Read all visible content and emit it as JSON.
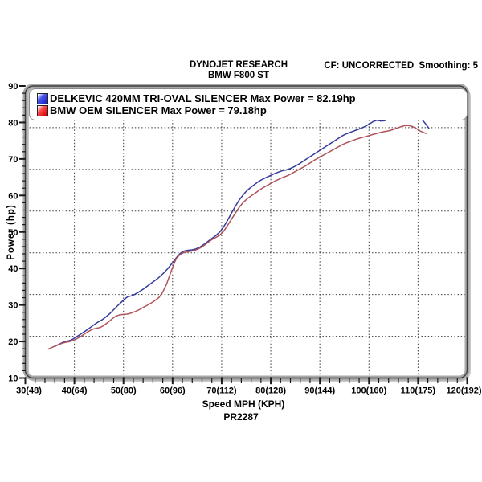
{
  "header": {
    "company": "DYNOJET RESEARCH",
    "vehicle": "BMW F800 ST",
    "correction": "CF: UNCORRECTED  Smoothing: 5"
  },
  "footer": {
    "run_id": "PR2287"
  },
  "colors": {
    "grid": "#3a3a3a",
    "frame_tube": "#a9a9a9",
    "frame_shadow": "#c9c9c9",
    "frame_line": "#3f3f3f",
    "tick": "#1a1a1a",
    "text": "#000000",
    "plot_bg": "#ffffff"
  },
  "chart_data": {
    "type": "line",
    "title": "",
    "xlabel": "Speed MPH (KPH)",
    "ylabel": "Power (hp)",
    "xlim": [
      30,
      120
    ],
    "ylim": [
      10,
      90
    ],
    "grid": "dashed",
    "legend_position": "top-inside",
    "x_ticks": [
      {
        "value": 30,
        "label": "30(48)"
      },
      {
        "value": 40,
        "label": "40(64)"
      },
      {
        "value": 50,
        "label": "50(80)"
      },
      {
        "value": 60,
        "label": "60(96)"
      },
      {
        "value": 70,
        "label": "70(112)"
      },
      {
        "value": 80,
        "label": "80(128)"
      },
      {
        "value": 90,
        "label": "90(144)"
      },
      {
        "value": 100,
        "label": "100(160)"
      },
      {
        "value": 110,
        "label": "110(175)"
      },
      {
        "value": 120,
        "label": "120(192)"
      }
    ],
    "y_ticks": [
      90,
      80,
      70,
      60,
      50,
      40,
      30,
      20,
      10
    ],
    "minor_tick_step": 2,
    "v_gridlines_mph": [
      40,
      50,
      60,
      70,
      80,
      90,
      100,
      110
    ],
    "h_gridlines_hp": [
      78.57,
      67.14,
      55.71,
      44.29,
      32.86,
      21.43
    ],
    "series": [
      {
        "name": "DELKEVIC 420MM TRI-OVAL SILENCER",
        "max_power_hp": 82.19,
        "legend": "DELKEVIC 420MM TRI-OVAL SILENCER Max Power = 82.19hp",
        "color": "#343a9b",
        "swatch": {
          "light": "#ffffff",
          "mid": "#4a55f0",
          "dark": "#1620c0"
        },
        "points": [
          [
            36.0,
            18.6
          ],
          [
            36.8,
            19.2
          ],
          [
            37.6,
            19.7
          ],
          [
            38.5,
            20.1
          ],
          [
            39.2,
            20.3
          ],
          [
            40.0,
            20.9
          ],
          [
            40.8,
            21.6
          ],
          [
            41.6,
            22.3
          ],
          [
            42.4,
            23.0
          ],
          [
            43.2,
            23.8
          ],
          [
            44.0,
            24.6
          ],
          [
            44.8,
            25.3
          ],
          [
            45.6,
            25.9
          ],
          [
            46.4,
            26.7
          ],
          [
            47.2,
            27.6
          ],
          [
            48.0,
            28.7
          ],
          [
            48.8,
            29.8
          ],
          [
            49.5,
            30.7
          ],
          [
            50.2,
            31.6
          ],
          [
            50.9,
            32.3
          ],
          [
            51.6,
            32.5
          ],
          [
            52.3,
            32.9
          ],
          [
            53.2,
            33.6
          ],
          [
            54.1,
            34.4
          ],
          [
            55.0,
            35.3
          ],
          [
            56.0,
            36.3
          ],
          [
            57.0,
            37.3
          ],
          [
            58.0,
            38.5
          ],
          [
            59.0,
            39.9
          ],
          [
            60.0,
            41.6
          ],
          [
            60.8,
            43.0
          ],
          [
            61.6,
            44.2
          ],
          [
            62.4,
            44.8
          ],
          [
            63.2,
            45.0
          ],
          [
            64.0,
            45.1
          ],
          [
            64.8,
            45.4
          ],
          [
            65.6,
            45.9
          ],
          [
            66.4,
            46.6
          ],
          [
            67.2,
            47.4
          ],
          [
            68.0,
            48.2
          ],
          [
            68.8,
            49.0
          ],
          [
            69.6,
            50.0
          ],
          [
            70.4,
            51.4
          ],
          [
            71.2,
            53.2
          ],
          [
            72.0,
            55.2
          ],
          [
            72.8,
            57.1
          ],
          [
            73.6,
            58.8
          ],
          [
            74.4,
            60.2
          ],
          [
            75.2,
            61.4
          ],
          [
            76.0,
            62.3
          ],
          [
            76.8,
            63.1
          ],
          [
            77.6,
            63.9
          ],
          [
            78.4,
            64.5
          ],
          [
            79.2,
            65.0
          ],
          [
            80.0,
            65.5
          ],
          [
            80.8,
            66.0
          ],
          [
            81.6,
            66.4
          ],
          [
            82.4,
            66.8
          ],
          [
            83.2,
            67.0
          ],
          [
            84.0,
            67.4
          ],
          [
            84.8,
            67.9
          ],
          [
            85.6,
            68.5
          ],
          [
            86.4,
            69.2
          ],
          [
            87.2,
            69.9
          ],
          [
            88.0,
            70.6
          ],
          [
            88.8,
            71.3
          ],
          [
            89.6,
            72.0
          ],
          [
            90.4,
            72.7
          ],
          [
            91.2,
            73.4
          ],
          [
            92.0,
            74.1
          ],
          [
            92.8,
            74.8
          ],
          [
            93.6,
            75.5
          ],
          [
            94.4,
            76.2
          ],
          [
            95.2,
            76.8
          ],
          [
            96.0,
            77.2
          ],
          [
            96.8,
            77.6
          ],
          [
            97.6,
            78.0
          ],
          [
            98.4,
            78.4
          ],
          [
            99.2,
            78.9
          ],
          [
            100.0,
            79.5
          ],
          [
            100.8,
            80.2
          ],
          [
            101.6,
            80.6
          ],
          [
            102.4,
            80.4
          ],
          [
            103.2,
            80.5
          ],
          [
            104.0,
            80.9
          ],
          [
            104.8,
            81.4
          ],
          [
            105.6,
            81.8
          ],
          [
            106.4,
            82.0
          ],
          [
            107.2,
            82.1
          ],
          [
            108.0,
            82.19
          ],
          [
            108.8,
            82.0
          ],
          [
            109.6,
            81.8
          ],
          [
            110.4,
            81.3
          ],
          [
            111.0,
            80.5
          ],
          [
            111.6,
            79.5
          ],
          [
            112.2,
            78.4
          ]
        ]
      },
      {
        "name": "BMW OEM SILENCER",
        "max_power_hp": 79.18,
        "legend": "BMW OEM SILENCER Max Power = 79.18hp",
        "color": "#b0545a",
        "swatch": {
          "light": "#ffffff",
          "mid": "#ff4a4a",
          "dark": "#cf0000"
        },
        "points": [
          [
            34.7,
            17.9
          ],
          [
            35.5,
            18.4
          ],
          [
            36.3,
            18.9
          ],
          [
            37.1,
            19.3
          ],
          [
            38.0,
            19.7
          ],
          [
            38.8,
            19.9
          ],
          [
            39.6,
            20.2
          ],
          [
            40.4,
            20.7
          ],
          [
            41.2,
            21.3
          ],
          [
            42.0,
            22.0
          ],
          [
            42.8,
            22.7
          ],
          [
            43.6,
            23.3
          ],
          [
            44.4,
            23.6
          ],
          [
            45.2,
            23.8
          ],
          [
            46.0,
            24.4
          ],
          [
            46.8,
            25.2
          ],
          [
            47.6,
            26.1
          ],
          [
            48.4,
            26.9
          ],
          [
            49.2,
            27.3
          ],
          [
            50.0,
            27.4
          ],
          [
            50.8,
            27.5
          ],
          [
            51.6,
            27.8
          ],
          [
            52.4,
            28.2
          ],
          [
            53.2,
            28.7
          ],
          [
            54.0,
            29.3
          ],
          [
            54.8,
            29.9
          ],
          [
            55.6,
            30.5
          ],
          [
            56.4,
            31.2
          ],
          [
            57.2,
            32.0
          ],
          [
            58.0,
            33.5
          ],
          [
            58.8,
            35.8
          ],
          [
            59.6,
            38.8
          ],
          [
            60.2,
            41.0
          ],
          [
            60.8,
            42.8
          ],
          [
            61.6,
            43.9
          ],
          [
            62.4,
            44.4
          ],
          [
            63.2,
            44.6
          ],
          [
            64.0,
            44.8
          ],
          [
            64.8,
            45.1
          ],
          [
            65.6,
            45.6
          ],
          [
            66.4,
            46.3
          ],
          [
            67.2,
            47.1
          ],
          [
            68.0,
            47.9
          ],
          [
            68.8,
            48.5
          ],
          [
            69.6,
            49.1
          ],
          [
            70.4,
            50.2
          ],
          [
            71.2,
            51.8
          ],
          [
            72.0,
            53.5
          ],
          [
            72.8,
            55.2
          ],
          [
            73.6,
            56.8
          ],
          [
            74.4,
            58.1
          ],
          [
            75.2,
            59.1
          ],
          [
            76.0,
            59.9
          ],
          [
            76.8,
            60.6
          ],
          [
            77.6,
            61.4
          ],
          [
            78.4,
            62.1
          ],
          [
            79.2,
            62.7
          ],
          [
            80.0,
            63.3
          ],
          [
            80.8,
            63.9
          ],
          [
            81.6,
            64.4
          ],
          [
            82.4,
            64.9
          ],
          [
            83.2,
            65.3
          ],
          [
            84.0,
            65.8
          ],
          [
            84.8,
            66.4
          ],
          [
            85.6,
            67.0
          ],
          [
            86.4,
            67.6
          ],
          [
            87.2,
            68.2
          ],
          [
            88.0,
            68.9
          ],
          [
            88.8,
            69.6
          ],
          [
            89.6,
            70.2
          ],
          [
            90.4,
            70.8
          ],
          [
            91.2,
            71.4
          ],
          [
            92.0,
            72.0
          ],
          [
            92.8,
            72.6
          ],
          [
            93.6,
            73.2
          ],
          [
            94.4,
            73.8
          ],
          [
            95.2,
            74.3
          ],
          [
            96.0,
            74.7
          ],
          [
            96.8,
            75.1
          ],
          [
            97.6,
            75.5
          ],
          [
            98.4,
            75.8
          ],
          [
            99.2,
            76.1
          ],
          [
            100.0,
            76.4
          ],
          [
            100.8,
            76.7
          ],
          [
            101.6,
            77.0
          ],
          [
            102.4,
            77.3
          ],
          [
            103.2,
            77.5
          ],
          [
            104.0,
            77.7
          ],
          [
            104.8,
            78.0
          ],
          [
            105.6,
            78.4
          ],
          [
            106.4,
            78.8
          ],
          [
            107.2,
            79.1
          ],
          [
            108.0,
            79.18
          ],
          [
            108.8,
            78.9
          ],
          [
            109.6,
            78.4
          ],
          [
            110.4,
            77.7
          ],
          [
            111.0,
            77.3
          ],
          [
            111.6,
            77.0
          ]
        ]
      }
    ]
  }
}
